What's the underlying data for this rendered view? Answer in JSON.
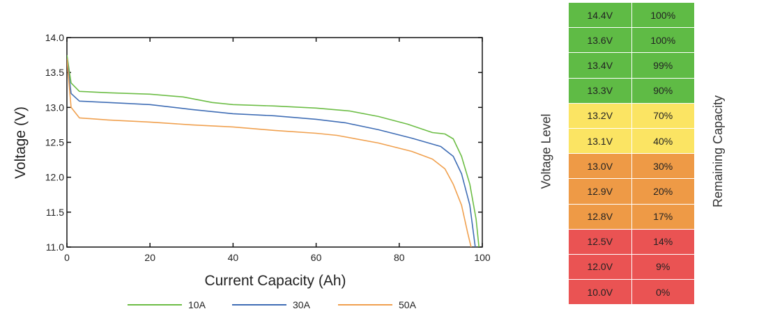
{
  "chart_data": {
    "type": "line",
    "xlabel": "Current Capacity (Ah)",
    "ylabel": "Voltage (V)",
    "xlim": [
      0,
      100
    ],
    "ylim": [
      11.0,
      14.0
    ],
    "xticks": [
      "0",
      "20",
      "40",
      "60",
      "80",
      "100"
    ],
    "yticks": [
      "11.0",
      "11.5",
      "12.0",
      "12.5",
      "13.0",
      "13.5",
      "14.0"
    ],
    "legend_position": "bottom",
    "grid": false,
    "series": [
      {
        "name": "10A",
        "color": "#6cbd45",
        "points": [
          [
            0,
            13.75
          ],
          [
            1,
            13.35
          ],
          [
            3,
            13.23
          ],
          [
            10,
            13.21
          ],
          [
            20,
            13.19
          ],
          [
            28,
            13.15
          ],
          [
            35,
            13.07
          ],
          [
            40,
            13.04
          ],
          [
            50,
            13.02
          ],
          [
            60,
            12.99
          ],
          [
            68,
            12.95
          ],
          [
            75,
            12.87
          ],
          [
            82,
            12.76
          ],
          [
            88,
            12.64
          ],
          [
            91,
            12.62
          ],
          [
            93,
            12.55
          ],
          [
            95,
            12.3
          ],
          [
            97,
            11.9
          ],
          [
            98.5,
            11.4
          ],
          [
            99.2,
            11.0
          ]
        ]
      },
      {
        "name": "30A",
        "color": "#3f6db5",
        "points": [
          [
            0,
            13.7
          ],
          [
            1,
            13.2
          ],
          [
            3,
            13.09
          ],
          [
            10,
            13.07
          ],
          [
            20,
            13.04
          ],
          [
            30,
            12.97
          ],
          [
            40,
            12.91
          ],
          [
            50,
            12.88
          ],
          [
            60,
            12.83
          ],
          [
            67,
            12.78
          ],
          [
            75,
            12.68
          ],
          [
            83,
            12.56
          ],
          [
            90,
            12.44
          ],
          [
            93,
            12.3
          ],
          [
            95,
            12.05
          ],
          [
            97,
            11.6
          ],
          [
            98.3,
            11.0
          ]
        ]
      },
      {
        "name": "50A",
        "color": "#f0a04e",
        "points": [
          [
            0,
            13.7
          ],
          [
            1,
            13.0
          ],
          [
            3,
            12.85
          ],
          [
            10,
            12.82
          ],
          [
            20,
            12.79
          ],
          [
            30,
            12.75
          ],
          [
            40,
            12.72
          ],
          [
            50,
            12.67
          ],
          [
            60,
            12.63
          ],
          [
            65,
            12.6
          ],
          [
            75,
            12.49
          ],
          [
            83,
            12.37
          ],
          [
            88,
            12.26
          ],
          [
            91,
            12.12
          ],
          [
            93,
            11.9
          ],
          [
            95,
            11.6
          ],
          [
            96.5,
            11.2
          ],
          [
            97.3,
            11.0
          ]
        ]
      }
    ]
  },
  "table": {
    "left_label": "Voltage Level",
    "right_label": "Remaining Capacity",
    "colors": {
      "green": "#5fbb45",
      "yellow": "#fbe463",
      "orange": "#ee9a46",
      "red": "#ea5353"
    },
    "rows": [
      {
        "voltage": "14.4V",
        "capacity": "100%",
        "level": "green"
      },
      {
        "voltage": "13.6V",
        "capacity": "100%",
        "level": "green"
      },
      {
        "voltage": "13.4V",
        "capacity": "99%",
        "level": "green"
      },
      {
        "voltage": "13.3V",
        "capacity": "90%",
        "level": "green"
      },
      {
        "voltage": "13.2V",
        "capacity": "70%",
        "level": "yellow"
      },
      {
        "voltage": "13.1V",
        "capacity": "40%",
        "level": "yellow"
      },
      {
        "voltage": "13.0V",
        "capacity": "30%",
        "level": "orange"
      },
      {
        "voltage": "12.9V",
        "capacity": "20%",
        "level": "orange"
      },
      {
        "voltage": "12.8V",
        "capacity": "17%",
        "level": "orange"
      },
      {
        "voltage": "12.5V",
        "capacity": "14%",
        "level": "red"
      },
      {
        "voltage": "12.0V",
        "capacity": "9%",
        "level": "red"
      },
      {
        "voltage": "10.0V",
        "capacity": "0%",
        "level": "red"
      }
    ]
  }
}
